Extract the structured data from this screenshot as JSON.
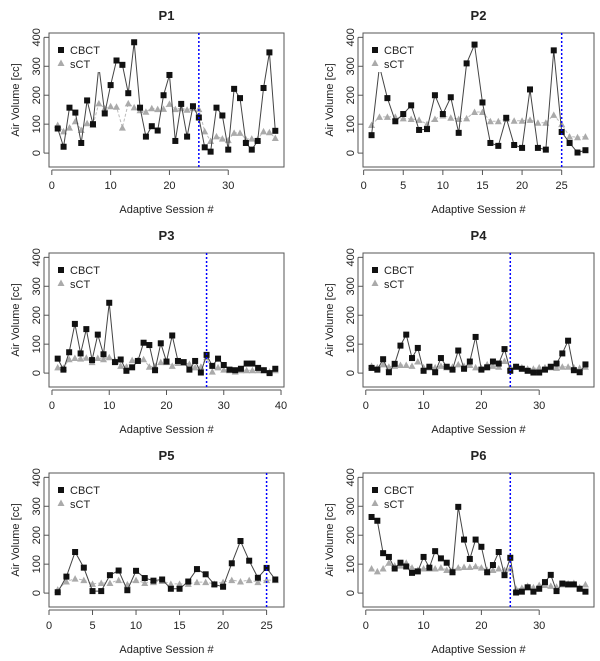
{
  "chart_data": [
    {
      "type": "line",
      "title": "P1",
      "xlabel": "Adaptive Session #",
      "ylabel": "Air Volume [cc]",
      "xticks": [
        0,
        10,
        20,
        30
      ],
      "yticks": [
        0,
        100,
        200,
        300,
        400
      ],
      "ylim": [
        -48,
        415
      ],
      "vline": 25,
      "legend": [
        "CBCT",
        "sCT"
      ],
      "legend_position": "top-left",
      "series": [
        {
          "name": "CBCT",
          "values": [
            85,
            22,
            157,
            140,
            35,
            182,
            100,
            300,
            137,
            235,
            320,
            305,
            207,
            383,
            157,
            57,
            93,
            78,
            200,
            270,
            42,
            170,
            57,
            162,
            123,
            20,
            5,
            157,
            130,
            12,
            222,
            190,
            35,
            12,
            42,
            225,
            348,
            77
          ]
        },
        {
          "name": "sCT",
          "values": [
            97,
            75,
            88,
            110,
            80,
            103,
            97,
            172,
            155,
            162,
            160,
            88,
            172,
            158,
            148,
            143,
            155,
            152,
            153,
            170,
            152,
            155,
            150,
            155,
            152,
            75,
            42,
            58,
            50,
            45,
            70,
            70,
            48,
            50,
            48,
            75,
            72,
            52
          ]
        }
      ]
    },
    {
      "type": "line",
      "title": "P2",
      "xlabel": "Adaptive Session #",
      "ylabel": "Air Volume [cc]",
      "xticks": [
        0,
        5,
        10,
        15,
        20,
        25
      ],
      "yticks": [
        0,
        100,
        200,
        300,
        400
      ],
      "ylim": [
        -48,
        415
      ],
      "vline": 25,
      "legend": [
        "CBCT",
        "sCT"
      ],
      "legend_position": "top-left",
      "series": [
        {
          "name": "CBCT",
          "values": [
            62,
            300,
            190,
            110,
            135,
            165,
            80,
            83,
            200,
            135,
            193,
            70,
            310,
            375,
            175,
            35,
            25,
            122,
            28,
            18,
            220,
            18,
            12,
            355,
            73,
            35,
            2,
            10
          ]
        },
        {
          "name": "sCT",
          "values": [
            97,
            125,
            125,
            125,
            120,
            118,
            115,
            100,
            118,
            130,
            122,
            118,
            120,
            142,
            142,
            110,
            110,
            118,
            112,
            112,
            115,
            105,
            105,
            132,
            100,
            57,
            55,
            57
          ]
        }
      ]
    },
    {
      "type": "line",
      "title": "P3",
      "xlabel": "Adaptive Session #",
      "ylabel": "Air Volume [cc]",
      "xticks": [
        0,
        10,
        20,
        30,
        40
      ],
      "yticks": [
        0,
        100,
        200,
        300,
        400
      ],
      "ylim": [
        -48,
        415
      ],
      "vline": 27,
      "legend": [
        "CBCT",
        "sCT"
      ],
      "legend_position": "top-left",
      "series": [
        {
          "name": "CBCT",
          "values": [
            50,
            12,
            72,
            170,
            68,
            152,
            45,
            133,
            65,
            243,
            38,
            47,
            8,
            20,
            42,
            105,
            97,
            10,
            103,
            40,
            130,
            42,
            38,
            12,
            42,
            2,
            63,
            25,
            50,
            28,
            12,
            10,
            15,
            33,
            33,
            18,
            10,
            0,
            15
          ]
        },
        {
          "name": "sCT",
          "values": [
            20,
            18,
            48,
            52,
            50,
            53,
            38,
            52,
            48,
            55,
            45,
            25,
            22,
            45,
            45,
            48,
            22,
            25,
            38,
            38,
            25,
            35,
            35,
            32,
            20,
            22,
            55,
            5,
            20,
            12,
            10,
            5,
            10,
            10,
            10,
            10,
            10,
            5,
            10
          ]
        }
      ]
    },
    {
      "type": "line",
      "title": "P4",
      "xlabel": "Adaptive Session #",
      "ylabel": "Air Volume [cc]",
      "xticks": [
        0,
        10,
        20,
        30
      ],
      "yticks": [
        0,
        100,
        200,
        300,
        400
      ],
      "ylim": [
        -48,
        415
      ],
      "vline": 25,
      "legend": [
        "CBCT",
        "sCT"
      ],
      "legend_position": "top-left",
      "series": [
        {
          "name": "CBCT",
          "values": [
            18,
            12,
            48,
            3,
            32,
            95,
            133,
            52,
            87,
            8,
            22,
            3,
            52,
            22,
            12,
            78,
            15,
            40,
            125,
            12,
            20,
            40,
            33,
            83,
            8,
            22,
            15,
            8,
            2,
            2,
            12,
            22,
            33,
            68,
            112,
            10,
            3,
            30
          ]
        },
        {
          "name": "sCT",
          "values": [
            25,
            20,
            30,
            22,
            25,
            28,
            28,
            25,
            40,
            20,
            20,
            20,
            25,
            20,
            22,
            30,
            25,
            28,
            20,
            18,
            30,
            25,
            22,
            42,
            22,
            22,
            20,
            15,
            15,
            20,
            20,
            20,
            18,
            22,
            22,
            20,
            18,
            22
          ]
        }
      ]
    },
    {
      "type": "line",
      "title": "P5",
      "xlabel": "Adaptive Session #",
      "ylabel": "Air Volume [cc]",
      "xticks": [
        0,
        5,
        10,
        15,
        20,
        25
      ],
      "yticks": [
        0,
        100,
        200,
        300,
        400
      ],
      "ylim": [
        -48,
        415
      ],
      "vline": 25,
      "legend": [
        "CBCT",
        "sCT"
      ],
      "legend_position": "top-left",
      "series": [
        {
          "name": "CBCT",
          "values": [
            3,
            57,
            142,
            88,
            7,
            7,
            62,
            78,
            10,
            77,
            52,
            43,
            47,
            15,
            15,
            40,
            83,
            65,
            30,
            22,
            103,
            180,
            112,
            53,
            87,
            47
          ]
        },
        {
          "name": "sCT",
          "values": [
            12,
            40,
            50,
            45,
            32,
            35,
            35,
            45,
            30,
            45,
            35,
            38,
            42,
            32,
            32,
            32,
            38,
            38,
            32,
            38,
            45,
            40,
            45,
            38,
            45,
            45
          ]
        }
      ]
    },
    {
      "type": "line",
      "title": "P6",
      "xlabel": "Adaptive Session #",
      "ylabel": "Air Volume [cc]",
      "xticks": [
        0,
        10,
        20,
        30
      ],
      "yticks": [
        0,
        100,
        200,
        300,
        400
      ],
      "ylim": [
        -48,
        415
      ],
      "vline": 25,
      "legend": [
        "CBCT",
        "sCT"
      ],
      "legend_position": "top-left",
      "series": [
        {
          "name": "CBCT",
          "values": [
            263,
            250,
            138,
            125,
            85,
            105,
            92,
            70,
            75,
            125,
            88,
            145,
            120,
            105,
            72,
            298,
            185,
            118,
            185,
            160,
            72,
            97,
            142,
            62,
            122,
            2,
            5,
            20,
            5,
            15,
            38,
            63,
            7,
            33,
            30,
            30,
            15,
            5
          ]
        },
        {
          "name": "sCT",
          "values": [
            85,
            75,
            85,
            105,
            95,
            95,
            105,
            88,
            80,
            85,
            85,
            85,
            88,
            80,
            80,
            88,
            90,
            90,
            93,
            88,
            80,
            80,
            85,
            80,
            85,
            15,
            18,
            25,
            20,
            28,
            28,
            25,
            22,
            30,
            33,
            35,
            20,
            30
          ]
        }
      ]
    }
  ],
  "colors": {
    "cbct": "#111111",
    "cbct_line": "#444444",
    "sct": "#aaaaaa",
    "sct_line": "#bbbbbb",
    "vline": "#0000ff"
  }
}
